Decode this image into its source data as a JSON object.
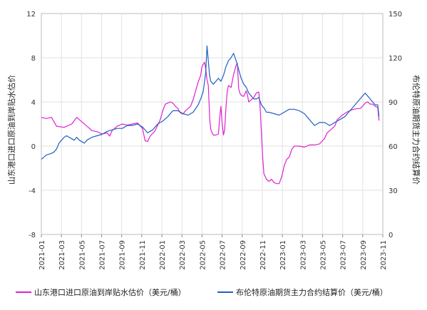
{
  "chart_data": {
    "type": "line",
    "y_left_label": "山东港口进口原油到岸贴水估价",
    "y_right_label": "布伦特原油期货主力合约结算价",
    "y_left_range": [
      -8,
      12
    ],
    "y_left_ticks": [
      "12",
      "8",
      "4",
      "0",
      "-4",
      "-8"
    ],
    "y_right_range": [
      0,
      150
    ],
    "y_right_ticks": [
      "150",
      "120",
      "90",
      "60",
      "30",
      "0"
    ],
    "x_ticks": [
      "2021-01",
      "2021-03",
      "2021-05",
      "2021-07",
      "2021-09",
      "2021-11",
      "2022-01",
      "2022-03",
      "2022-05",
      "2022-07",
      "2022-09",
      "2022-11",
      "2023-01",
      "2023-03",
      "2023-05",
      "2023-07",
      "2023-09",
      "2023-11"
    ],
    "grid": true,
    "legend_position": "bottom",
    "series": [
      {
        "name": "山东港口进口原油到岸贴水估价（美元/桶）",
        "axis": "left",
        "color": "#e020d0",
        "points": [
          [
            0,
            2.6
          ],
          [
            2,
            2.5
          ],
          [
            4,
            2.6
          ],
          [
            6,
            1.8
          ],
          [
            9,
            1.7
          ],
          [
            12,
            2.0
          ],
          [
            14,
            2.6
          ],
          [
            16,
            2.2
          ],
          [
            18,
            1.8
          ],
          [
            20,
            1.4
          ],
          [
            22,
            1.3
          ],
          [
            24,
            1.1
          ],
          [
            26,
            1.2
          ],
          [
            27,
            0.9
          ],
          [
            28,
            1.4
          ],
          [
            30,
            1.8
          ],
          [
            32,
            2.0
          ],
          [
            34,
            1.9
          ],
          [
            36,
            2.0
          ],
          [
            38,
            2.1
          ],
          [
            40,
            1.6
          ],
          [
            41,
            0.5
          ],
          [
            42,
            0.4
          ],
          [
            43,
            0.9
          ],
          [
            45,
            1.4
          ],
          [
            47,
            2.4
          ],
          [
            48,
            3.2
          ],
          [
            49,
            3.8
          ],
          [
            50,
            3.9
          ],
          [
            51,
            4.0
          ],
          [
            52,
            3.9
          ],
          [
            53,
            3.6
          ],
          [
            54,
            3.4
          ],
          [
            55,
            3.0
          ],
          [
            56,
            2.9
          ],
          [
            57,
            3.2
          ],
          [
            58,
            3.4
          ],
          [
            59,
            3.6
          ],
          [
            60,
            4.2
          ],
          [
            61,
            5.0
          ],
          [
            62,
            5.8
          ],
          [
            63,
            6.4
          ],
          [
            63.5,
            7.2
          ],
          [
            64,
            7.4
          ],
          [
            64.5,
            7.6
          ],
          [
            65,
            7.0
          ],
          [
            65.5,
            6.0
          ],
          [
            66,
            5.5
          ],
          [
            66.3,
            4.0
          ],
          [
            66.6,
            2.3
          ],
          [
            67,
            1.5
          ],
          [
            67.5,
            1.2
          ],
          [
            68,
            1.0
          ],
          [
            69,
            1.0
          ],
          [
            70,
            1.1
          ],
          [
            70.5,
            2.5
          ],
          [
            71,
            3.6
          ],
          [
            71.5,
            2.0
          ],
          [
            72,
            1.0
          ],
          [
            72.5,
            1.5
          ],
          [
            73,
            3.5
          ],
          [
            73.5,
            5.0
          ],
          [
            74,
            5.5
          ],
          [
            75,
            5.3
          ],
          [
            76,
            6.5
          ],
          [
            77,
            7.3
          ],
          [
            77.5,
            7.5
          ],
          [
            78,
            5.2
          ],
          [
            78.5,
            4.8
          ],
          [
            79,
            4.6
          ],
          [
            80,
            4.5
          ],
          [
            81,
            5.0
          ],
          [
            81.5,
            4.6
          ],
          [
            82,
            4.0
          ],
          [
            83,
            4.2
          ],
          [
            84,
            4.4
          ],
          [
            85,
            4.8
          ],
          [
            86,
            4.9
          ],
          [
            86.5,
            3.5
          ],
          [
            87,
            1.2
          ],
          [
            87.5,
            -1.0
          ],
          [
            88,
            -2.5
          ],
          [
            89,
            -3.0
          ],
          [
            90,
            -3.2
          ],
          [
            91,
            -3.0
          ],
          [
            92,
            -3.3
          ],
          [
            93,
            -3.4
          ],
          [
            94,
            -3.4
          ],
          [
            95,
            -2.8
          ],
          [
            96,
            -1.8
          ],
          [
            97,
            -1.2
          ],
          [
            98,
            -1.0
          ],
          [
            99,
            -0.3
          ],
          [
            100,
            0.0
          ],
          [
            102,
            0.0
          ],
          [
            104,
            -0.1
          ],
          [
            106,
            0.1
          ],
          [
            108,
            0.1
          ],
          [
            110,
            0.2
          ],
          [
            112,
            0.7
          ],
          [
            113,
            1.2
          ],
          [
            114,
            1.4
          ],
          [
            116,
            1.8
          ],
          [
            117,
            2.4
          ],
          [
            119,
            2.8
          ],
          [
            121,
            3.1
          ],
          [
            123,
            3.3
          ],
          [
            125,
            3.4
          ],
          [
            126,
            3.4
          ],
          [
            127,
            3.6
          ],
          [
            128,
            3.9
          ],
          [
            129,
            4.0
          ],
          [
            130,
            3.8
          ],
          [
            131,
            3.8
          ],
          [
            132,
            3.6
          ],
          [
            133,
            3.5
          ],
          [
            133.5,
            2.3
          ]
        ]
      },
      {
        "name": "布伦特原油期货主力合约结算价（美元/桶）",
        "axis": "right",
        "color": "#2060c0",
        "points": [
          [
            0,
            51
          ],
          [
            2,
            54
          ],
          [
            4,
            55
          ],
          [
            5,
            56
          ],
          [
            6,
            58
          ],
          [
            7,
            62
          ],
          [
            8,
            64
          ],
          [
            9,
            66
          ],
          [
            10,
            67
          ],
          [
            11,
            66
          ],
          [
            12,
            65
          ],
          [
            13,
            64
          ],
          [
            14,
            66
          ],
          [
            15,
            64
          ],
          [
            16,
            63
          ],
          [
            17,
            62
          ],
          [
            18,
            64
          ],
          [
            20,
            66
          ],
          [
            22,
            67
          ],
          [
            24,
            68
          ],
          [
            26,
            70
          ],
          [
            28,
            71
          ],
          [
            30,
            72
          ],
          [
            32,
            72
          ],
          [
            34,
            74
          ],
          [
            36,
            74
          ],
          [
            38,
            75
          ],
          [
            40,
            73
          ],
          [
            42,
            69
          ],
          [
            44,
            71
          ],
          [
            46,
            75
          ],
          [
            48,
            77
          ],
          [
            50,
            80
          ],
          [
            52,
            84
          ],
          [
            54,
            84
          ],
          [
            56,
            82
          ],
          [
            58,
            81
          ],
          [
            60,
            83
          ],
          [
            62,
            88
          ],
          [
            63,
            92
          ],
          [
            64,
            97
          ],
          [
            65,
            110
          ],
          [
            65.5,
            128
          ],
          [
            66,
            118
          ],
          [
            66.5,
            108
          ],
          [
            67,
            104
          ],
          [
            68,
            102
          ],
          [
            69,
            104
          ],
          [
            70,
            106
          ],
          [
            71,
            104
          ],
          [
            72,
            108
          ],
          [
            73,
            114
          ],
          [
            74,
            118
          ],
          [
            75,
            120
          ],
          [
            76,
            123
          ],
          [
            77,
            118
          ],
          [
            78,
            112
          ],
          [
            79,
            106
          ],
          [
            80,
            102
          ],
          [
            81,
            100
          ],
          [
            82,
            96
          ],
          [
            83,
            94
          ],
          [
            84,
            92
          ],
          [
            85,
            92
          ],
          [
            86,
            93
          ],
          [
            87,
            88
          ],
          [
            88,
            86
          ],
          [
            89,
            83
          ],
          [
            90,
            83
          ],
          [
            92,
            82
          ],
          [
            94,
            81
          ],
          [
            96,
            83
          ],
          [
            98,
            85
          ],
          [
            100,
            85
          ],
          [
            102,
            84
          ],
          [
            104,
            82
          ],
          [
            106,
            78
          ],
          [
            108,
            74
          ],
          [
            110,
            76
          ],
          [
            112,
            76
          ],
          [
            114,
            74
          ],
          [
            116,
            76
          ],
          [
            118,
            78
          ],
          [
            120,
            80
          ],
          [
            122,
            84
          ],
          [
            124,
            88
          ],
          [
            126,
            92
          ],
          [
            127,
            94
          ],
          [
            128,
            96
          ],
          [
            129,
            94
          ],
          [
            130,
            92
          ],
          [
            131,
            90
          ],
          [
            132,
            88
          ],
          [
            133,
            88
          ],
          [
            133.5,
            80
          ]
        ]
      }
    ]
  }
}
